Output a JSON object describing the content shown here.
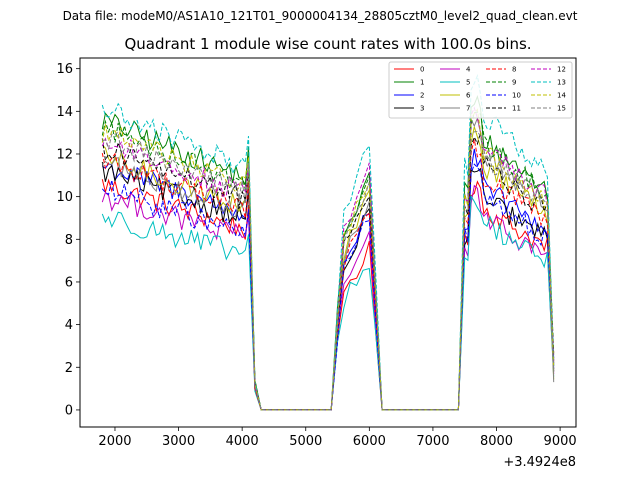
{
  "chart_data": {
    "type": "line",
    "suptitle": "Data file: modeM0/AS1A10_121T01_9000004134_28805cztM0_level2_quad_clean.evt",
    "title": "Quadrant 1 module wise count rates with 100.0s bins.",
    "xlabel": "",
    "ylabel": "",
    "x_offset_label": "+3.4924e8",
    "xlim": [
      1450,
      9250
    ],
    "ylim": [
      -0.8,
      16.5
    ],
    "xticks": [
      2000,
      3000,
      4000,
      5000,
      6000,
      7000,
      8000,
      9000
    ],
    "xtick_labels": [
      "2000",
      "3000",
      "4000",
      "5000",
      "6000",
      "7000",
      "8000",
      "9000"
    ],
    "yticks": [
      0,
      2,
      4,
      6,
      8,
      10,
      12,
      14,
      16
    ],
    "ytick_labels": [
      "0",
      "2",
      "4",
      "6",
      "8",
      "10",
      "12",
      "14",
      "16"
    ],
    "grid": false,
    "legend_position": "top-right",
    "legend_columns": 4,
    "segments": [
      {
        "start": 1800,
        "end": 4100
      },
      {
        "start": 5500,
        "end": 6000
      },
      {
        "start": 7500,
        "end": 8800
      }
    ],
    "gap_before": [
      {
        "x": [
          4200,
          4300
        ],
        "y_ratio": [
          0.09,
          0.0
        ]
      },
      {
        "x": [
          5400
        ],
        "y_ratio": [
          0.0
        ]
      },
      {
        "x": [
          6100,
          6200
        ],
        "y_ratio": [
          0.5,
          0.0
        ]
      },
      {
        "x": [
          7400
        ],
        "y_ratio": [
          0.0
        ]
      },
      {
        "x": [
          8900
        ],
        "y_ratio": [
          0.15
        ]
      }
    ],
    "series": [
      {
        "name": "0",
        "color": "#ff0000",
        "dash": "solid",
        "levels": [
          9.8,
          6.8,
          9.5
        ]
      },
      {
        "name": "1",
        "color": "#008000",
        "dash": "solid",
        "levels": [
          12.6,
          10.0,
          12.8
        ]
      },
      {
        "name": "2",
        "color": "#0000ff",
        "dash": "solid",
        "levels": [
          10.6,
          8.5,
          10.5
        ]
      },
      {
        "name": "3",
        "color": "#000000",
        "dash": "solid",
        "levels": [
          10.4,
          8.2,
          10.0
        ]
      },
      {
        "name": "4",
        "color": "#bf00bf",
        "dash": "solid",
        "levels": [
          9.3,
          7.5,
          9.0
        ]
      },
      {
        "name": "5",
        "color": "#00bfbf",
        "dash": "solid",
        "levels": [
          8.4,
          6.2,
          8.8
        ]
      },
      {
        "name": "6",
        "color": "#bfbf00",
        "dash": "solid",
        "levels": [
          11.0,
          9.0,
          11.5
        ]
      },
      {
        "name": "7",
        "color": "#808080",
        "dash": "solid",
        "levels": [
          10.8,
          8.8,
          12.0
        ]
      },
      {
        "name": "8",
        "color": "#ff0000",
        "dash": "dashed",
        "levels": [
          10.9,
          8.6,
          11.0
        ]
      },
      {
        "name": "9",
        "color": "#008000",
        "dash": "dashed",
        "levels": [
          12.3,
          9.6,
          12.6
        ]
      },
      {
        "name": "10",
        "color": "#0000ff",
        "dash": "dashed",
        "levels": [
          9.6,
          8.0,
          10.0
        ]
      },
      {
        "name": "11",
        "color": "#000000",
        "dash": "dashed",
        "levels": [
          11.4,
          9.3,
          11.6
        ]
      },
      {
        "name": "12",
        "color": "#bf00bf",
        "dash": "dashed",
        "levels": [
          11.7,
          10.2,
          12.4
        ]
      },
      {
        "name": "13",
        "color": "#00bfbf",
        "dash": "dashed",
        "levels": [
          13.1,
          11.2,
          13.9
        ]
      },
      {
        "name": "14",
        "color": "#bfbf00",
        "dash": "dashed",
        "levels": [
          12.1,
          9.9,
          12.2
        ]
      },
      {
        "name": "15",
        "color": "#808080",
        "dash": "dashed",
        "levels": [
          11.8,
          9.4,
          11.9
        ]
      }
    ]
  }
}
